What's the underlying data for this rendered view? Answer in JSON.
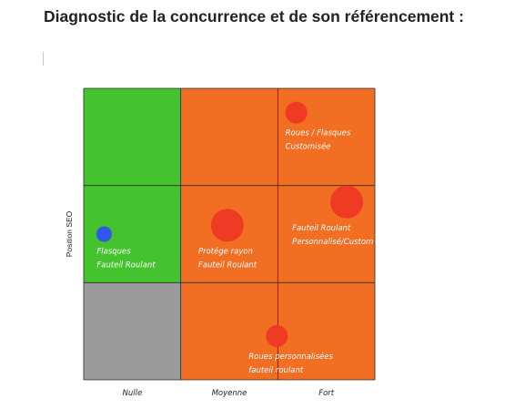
{
  "page": {
    "title": "Diagnostic de la concurrence et de son référencement :"
  },
  "colors": {
    "good": "#45c32e",
    "medium": "#f26e22",
    "neutral": "#9b9b9b",
    "competitor": "#ef3a24",
    "self": "#2f57e8",
    "grid": "#2a2a2a",
    "cell_text": "#ffffff",
    "axis_text": "#222222"
  },
  "chart_data": {
    "type": "scatter",
    "title": "",
    "xlabel": "",
    "ylabel": "Position SEO",
    "x_categories": [
      "Nulle",
      "Moyenne",
      "Fort"
    ],
    "y_levels": 3,
    "cells": [
      {
        "col": 0,
        "row": 2,
        "color": "good"
      },
      {
        "col": 1,
        "row": 2,
        "color": "medium"
      },
      {
        "col": 2,
        "row": 2,
        "color": "medium"
      },
      {
        "col": 0,
        "row": 1,
        "color": "good"
      },
      {
        "col": 1,
        "row": 1,
        "color": "medium"
      },
      {
        "col": 2,
        "row": 1,
        "color": "medium"
      },
      {
        "col": 0,
        "row": 0,
        "color": "neutral"
      },
      {
        "col": 1,
        "row": 0,
        "color": "medium"
      },
      {
        "col": 2,
        "row": 0,
        "color": "medium"
      }
    ],
    "points": [
      {
        "id": "roues-flasques-customisee",
        "x": 2.19,
        "y": 2.75,
        "size": 2,
        "color": "competitor",
        "label": [
          "Roues / Flasques",
          "Customisée"
        ]
      },
      {
        "id": "fauteil-roulant-personnalise",
        "x": 2.71,
        "y": 1.83,
        "size": 3,
        "color": "competitor",
        "label": [
          "Fauteil Roulant",
          "Personnalisé/Custom"
        ]
      },
      {
        "id": "protege-rayon",
        "x": 1.48,
        "y": 1.59,
        "size": 3,
        "color": "competitor",
        "label": [
          "Protége rayon",
          "Fauteil Roulant"
        ]
      },
      {
        "id": "flasques-fauteil-roulant",
        "x": 0.21,
        "y": 1.5,
        "size": 1,
        "color": "self",
        "label": [
          "Flasques",
          "Fauteil Roulant"
        ]
      },
      {
        "id": "roues-personnalisees",
        "x": 1.99,
        "y": 0.45,
        "size": 2,
        "color": "competitor",
        "label": [
          "Roues personnalisées",
          "fauteil roulant"
        ]
      }
    ],
    "grid": true,
    "legend": "none"
  }
}
